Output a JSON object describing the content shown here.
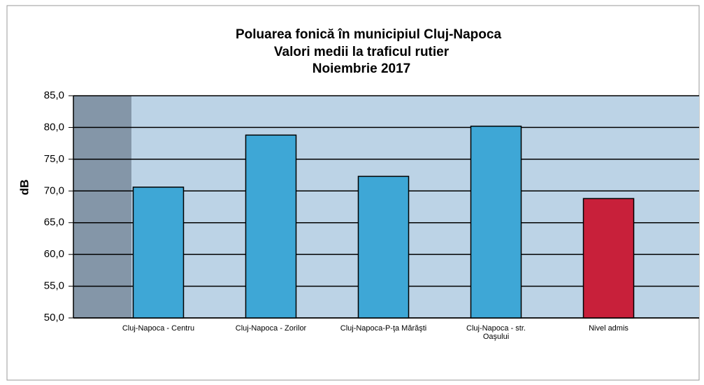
{
  "chart_data": {
    "type": "bar",
    "title": [
      "Poluarea fonică în municipiul Cluj-Napoca",
      "Valori medii la traficul rutier",
      "Noiembrie 2017"
    ],
    "y_label": "dB",
    "categories": [
      "Cluj-Napoca - Centru",
      "Cluj-Napoca - Zorilor",
      "Cluj-Napoca-P-ţa Mărăşti",
      "Cluj-Napoca - str. Oaşului",
      "Nivel admis"
    ],
    "values": [
      70.6,
      78.8,
      72.3,
      80.2,
      68.8
    ],
    "colors": [
      "#3ea7d6",
      "#3ea7d6",
      "#3ea7d6",
      "#3ea7d6",
      "#c8203a"
    ],
    "ylim": [
      50,
      85
    ],
    "yticks": [
      {
        "value": 50,
        "label": "50,0"
      },
      {
        "value": 55,
        "label": "55,0"
      },
      {
        "value": 60,
        "label": "60,0"
      },
      {
        "value": 65,
        "label": "65,0"
      },
      {
        "value": 70,
        "label": "70,0"
      },
      {
        "value": 75,
        "label": "75,0"
      },
      {
        "value": 80,
        "label": "80,0"
      },
      {
        "value": 85,
        "label": "85,0"
      }
    ],
    "grid": true
  }
}
